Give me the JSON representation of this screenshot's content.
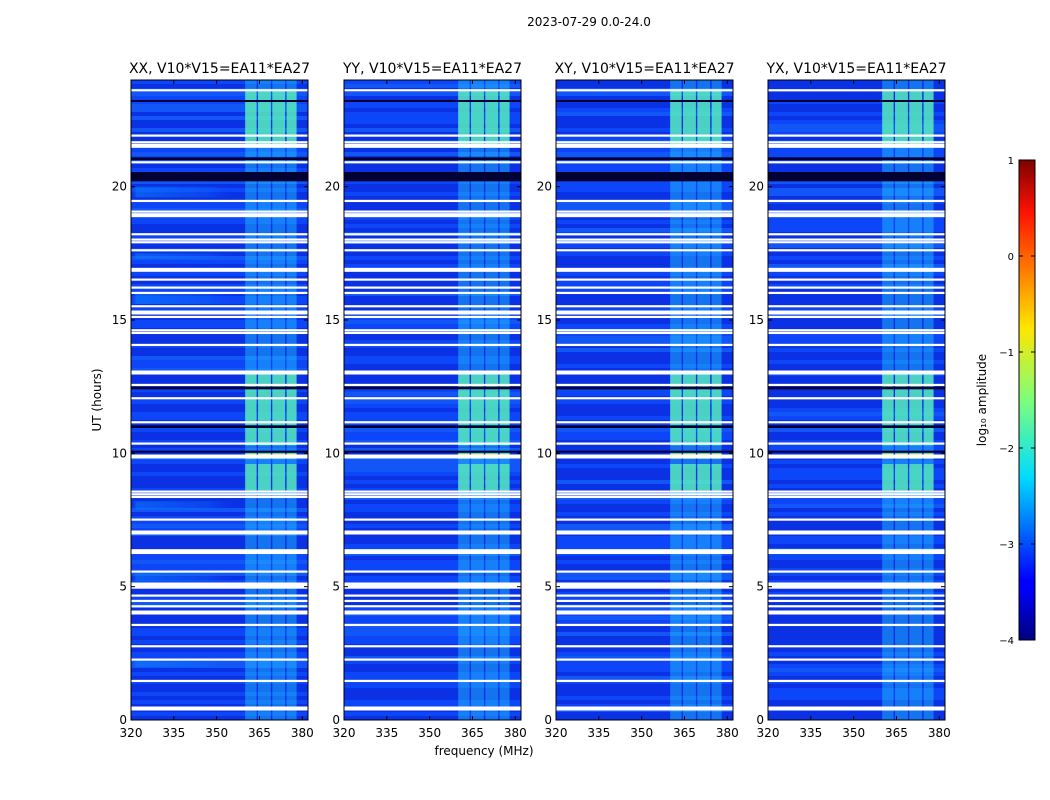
{
  "chart_data": {
    "type": "heatmap",
    "suptitle": "2023-07-29 0.0-24.0",
    "xlabel": "frequency (MHz)",
    "ylabel": "UT (hours)",
    "xlim": [
      320,
      382
    ],
    "ylim": [
      0,
      24
    ],
    "xticks": [
      320,
      335,
      350,
      365,
      380
    ],
    "yticks": [
      0,
      5,
      10,
      15,
      20
    ],
    "panels": [
      {
        "title": "XX, V10*V15=EA11*EA27",
        "residual_band": true
      },
      {
        "title": "YY, V10*V15=EA11*EA27",
        "residual_band": false
      },
      {
        "title": "XY, V10*V15=EA11*EA27",
        "residual_band": false
      },
      {
        "title": "YX, V10*V15=EA11*EA27",
        "residual_band": false
      }
    ],
    "rfi_band_mhz": [
      360,
      380
    ],
    "rfi_channels_mhz": [
      [
        360,
        364
      ],
      [
        364.5,
        369
      ],
      [
        369.5,
        374
      ],
      [
        374.5,
        378
      ]
    ],
    "flagged_hours": [
      0.45,
      1.45,
      2.25,
      2.75,
      3.55,
      4.05,
      4.25,
      4.45,
      4.65,
      4.95,
      5.1,
      5.55,
      6.25,
      6.3,
      6.35,
      7.05,
      7.5,
      8.35,
      8.45,
      8.55,
      9.9,
      10.35,
      11.15,
      12.05,
      12.55,
      13.05,
      14.05,
      14.5,
      14.6,
      15.1,
      15.3,
      15.5,
      16.0,
      16.2,
      16.5,
      16.9,
      17.6,
      17.9,
      18.0,
      18.2,
      18.95,
      19.05,
      19.45,
      20.9,
      21.5,
      21.55,
      21.65,
      21.9,
      23.6
    ],
    "dark_gap_hours": [
      [
        20.2,
        20.55
      ],
      [
        21.0,
        21.1
      ],
      [
        12.4,
        12.5
      ],
      [
        10.95,
        11.05
      ],
      [
        10.05,
        10.1
      ],
      [
        23.2,
        23.25
      ]
    ],
    "colorbar": {
      "label": "log₁₀ amplitude",
      "range": [
        -4,
        1
      ],
      "ticks": [
        "1",
        "0",
        "−1",
        "−2",
        "−3",
        "−4"
      ],
      "colormap": "jet"
    }
  }
}
